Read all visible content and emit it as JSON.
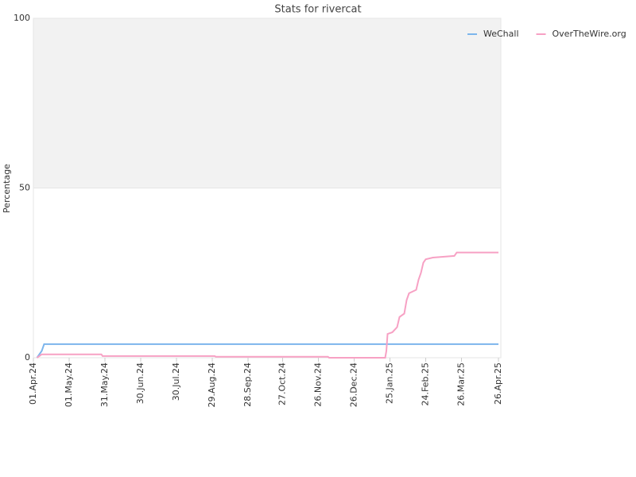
{
  "chart_data": {
    "type": "line",
    "title": "Stats for rivercat",
    "y_label": "Percentage",
    "ylim": [
      0,
      100
    ],
    "yticks": [
      0,
      50,
      100
    ],
    "band": [
      50,
      100
    ],
    "legend": "top-right",
    "xlim": [
      "2024-04-01",
      "2025-04-28"
    ],
    "xticks": [
      {
        "value": "2024-04-01",
        "label": "01.Apr.24"
      },
      {
        "value": "2024-05-01",
        "label": "01.May.24"
      },
      {
        "value": "2024-05-31",
        "label": "31.May.24"
      },
      {
        "value": "2024-06-30",
        "label": "30.Jun.24"
      },
      {
        "value": "2024-07-30",
        "label": "30.Jul.24"
      },
      {
        "value": "2024-08-29",
        "label": "29.Aug.24"
      },
      {
        "value": "2024-09-28",
        "label": "28.Sep.24"
      },
      {
        "value": "2024-10-27",
        "label": "27.Oct.24"
      },
      {
        "value": "2024-11-26",
        "label": "26.Nov.24"
      },
      {
        "value": "2024-12-26",
        "label": "26.Dec.24"
      },
      {
        "value": "2025-01-25",
        "label": "25.Jan.25"
      },
      {
        "value": "2025-02-24",
        "label": "24.Feb.25"
      },
      {
        "value": "2025-03-26",
        "label": "26.Mar.25"
      },
      {
        "value": "2025-04-26",
        "label": "26.Apr.25"
      }
    ],
    "series": [
      {
        "name": "WeChall",
        "color": "#7cb5ec",
        "x": [
          "2024-04-04",
          "2024-04-06",
          "2024-04-08",
          "2024-04-09",
          "2024-04-10",
          "2025-04-26"
        ],
        "values": [
          0,
          1,
          2,
          3,
          4,
          4
        ]
      },
      {
        "name": "OverTheWire.org",
        "color": "#f7a1c4",
        "x": [
          "2024-04-04",
          "2024-04-08",
          "2024-05-28",
          "2024-05-29",
          "2024-08-31",
          "2024-09-01",
          "2024-12-04",
          "2024-12-05",
          "2025-01-21",
          "2025-01-22",
          "2025-01-23",
          "2025-01-27",
          "2025-01-31",
          "2025-02-02",
          "2025-02-06",
          "2025-02-08",
          "2025-02-10",
          "2025-02-16",
          "2025-02-18",
          "2025-02-20",
          "2025-02-22",
          "2025-02-24",
          "2025-03-02",
          "2025-03-20",
          "2025-03-22",
          "2025-04-26"
        ],
        "values": [
          0,
          1,
          1,
          0.5,
          0.5,
          0.3,
          0.3,
          0,
          0,
          2,
          7,
          7.5,
          9,
          12,
          13,
          17,
          19,
          20,
          23,
          25,
          28,
          29,
          29.5,
          30,
          31,
          31
        ]
      }
    ]
  }
}
